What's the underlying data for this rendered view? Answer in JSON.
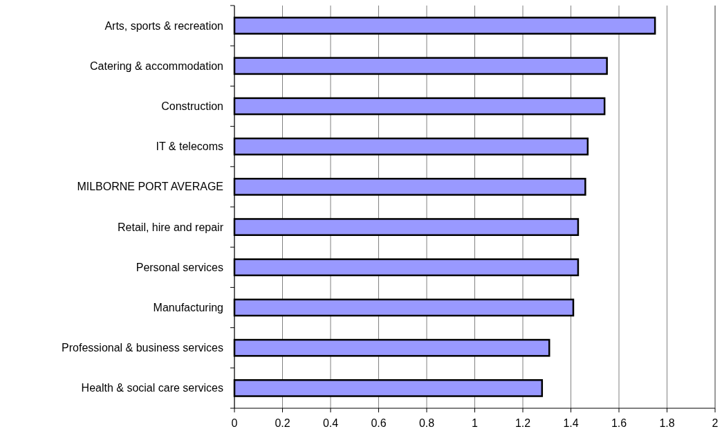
{
  "chart_data": {
    "type": "bar",
    "orientation": "horizontal",
    "categories": [
      "Arts, sports & recreation",
      "Catering & accommodation",
      "Construction",
      "IT & telecoms",
      "MILBORNE PORT AVERAGE",
      "Retail, hire and repair",
      "Personal services",
      "Manufacturing",
      "Professional & business services",
      "Health & social care services"
    ],
    "values": [
      1.75,
      1.55,
      1.54,
      1.47,
      1.46,
      1.43,
      1.43,
      1.41,
      1.31,
      1.28
    ],
    "color": "#9999ff",
    "xlim": [
      0,
      2
    ],
    "xticks": [
      0,
      0.2,
      0.4,
      0.6,
      0.8,
      1,
      1.2,
      1.4,
      1.6,
      1.8,
      2
    ],
    "grid": "x"
  }
}
